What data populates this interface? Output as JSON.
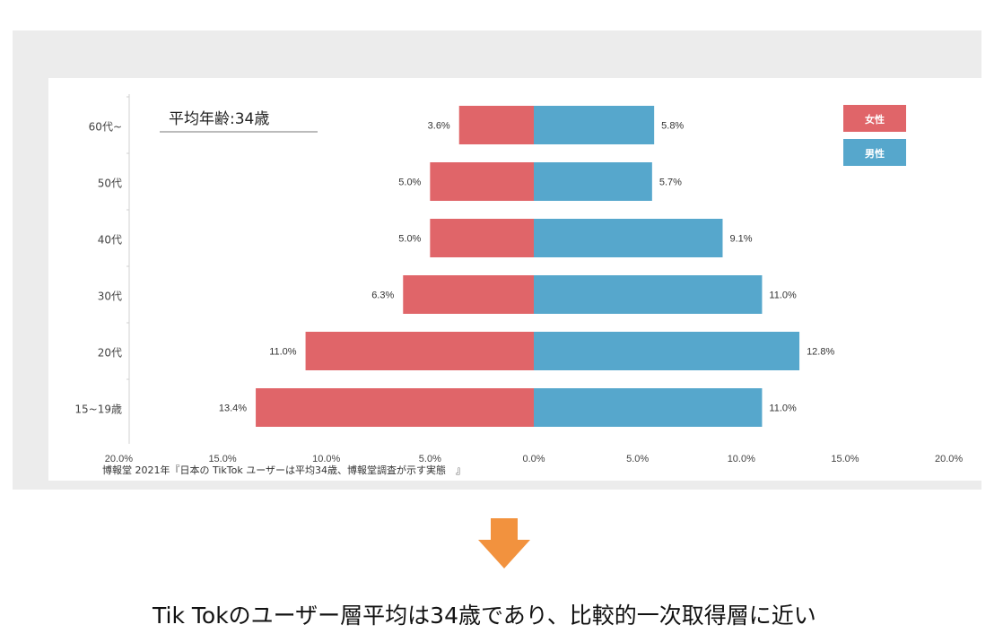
{
  "chart_data": {
    "type": "bar",
    "orientation": "horizontal",
    "layout": "population-pyramid",
    "categories": [
      "60代~",
      "50代",
      "40代",
      "30代",
      "20代",
      "15~19歳"
    ],
    "series": [
      {
        "name": "女性",
        "values": [
          3.6,
          5.0,
          5.0,
          6.3,
          11.0,
          13.4
        ],
        "color": "#e06569",
        "side": "left"
      },
      {
        "name": "男性",
        "values": [
          5.8,
          5.7,
          9.1,
          11.0,
          12.8,
          11.0
        ],
        "color": "#56a7cc",
        "side": "right"
      }
    ],
    "data_labels_left": [
      "3.6%",
      "5.0%",
      "5.0%",
      "6.3%",
      "11.0%",
      "13.4%"
    ],
    "data_labels_right": [
      "5.8%",
      "5.7%",
      "9.1%",
      "11.0%",
      "12.8%",
      "11.0%"
    ],
    "x_ticks": [
      "20.0%",
      "15.0%",
      "10.0%",
      "5.0%",
      "0.0%",
      "5.0%",
      "10.0%",
      "15.0%",
      "20.0%"
    ],
    "xlim": [
      -20,
      20
    ],
    "annotation": "平均年齢:34歳",
    "legend_placement": "top-right",
    "grid": false
  },
  "source": "博報堂 2021年『日本の TikTok ユーザーは平均34歳、博報堂調査が示す実態　』",
  "conclusion": "Tik Tokのユーザー層平均は34歳であり、比較的一次取得層に近い",
  "colors": {
    "arrow": "#f2923e",
    "panel": "#ececec"
  },
  "icons": {
    "arrow": "down-arrow-icon"
  }
}
